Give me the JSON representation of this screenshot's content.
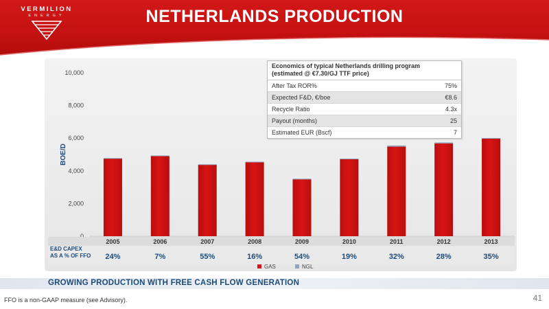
{
  "header": {
    "title": "NETHERLANDS PRODUCTION",
    "logo_name": "VERMILION",
    "logo_sub": "ENERGY"
  },
  "colors": {
    "gas": "#d81414",
    "gas_dark": "#b80e0e",
    "ngl": "#8fa5bd",
    "accent_blue": "#1d4b7a"
  },
  "chart_data": {
    "type": "bar",
    "stacked": true,
    "categories": [
      "2005",
      "2006",
      "2007",
      "2008",
      "2009",
      "2010",
      "2011",
      "2012",
      "2013"
    ],
    "series": [
      {
        "name": "GAS",
        "values": [
          4750,
          4900,
          4380,
          4520,
          3480,
          4720,
          5480,
          5680,
          5970
        ]
      },
      {
        "name": "NGL",
        "values": [
          30,
          40,
          20,
          40,
          40,
          30,
          70,
          60,
          40
        ]
      }
    ],
    "ylabel": "BOE/D",
    "ylim": [
      0,
      10000
    ],
    "yticks": [
      "0",
      "2,000",
      "4,000",
      "6,000",
      "8,000",
      "10,000"
    ],
    "ytick_values": [
      0,
      2000,
      4000,
      6000,
      8000,
      10000
    ],
    "legend": [
      "GAS",
      "NGL"
    ],
    "legend_position": "bottom-center",
    "grid": false
  },
  "capex": {
    "label_line1": "E&D CAPEX",
    "label_line2": "AS A % OF FFO",
    "values": [
      "24%",
      "7%",
      "55%",
      "16%",
      "54%",
      "19%",
      "32%",
      "28%",
      "35%"
    ]
  },
  "economics": {
    "title_line1": "Economics of typical Netherlands drilling program",
    "title_line2": "(estimated @ €7.30/GJ TTF price)",
    "rows": [
      {
        "label": "After Tax ROR%",
        "value": "75%"
      },
      {
        "label": "Expected F&D, €/boe",
        "value": "€8.6"
      },
      {
        "label": "Recycle Ratio",
        "value": "4.3x"
      },
      {
        "label": "Payout (months)",
        "value": "25"
      },
      {
        "label": "Estimated EUR (Bscf)",
        "value": "7"
      }
    ]
  },
  "tagline": "GROWING PRODUCTION WITH FREE CASH FLOW GENERATION",
  "footnote": "FFO is a non-GAAP measure (see Advisory).",
  "page_number": "41"
}
